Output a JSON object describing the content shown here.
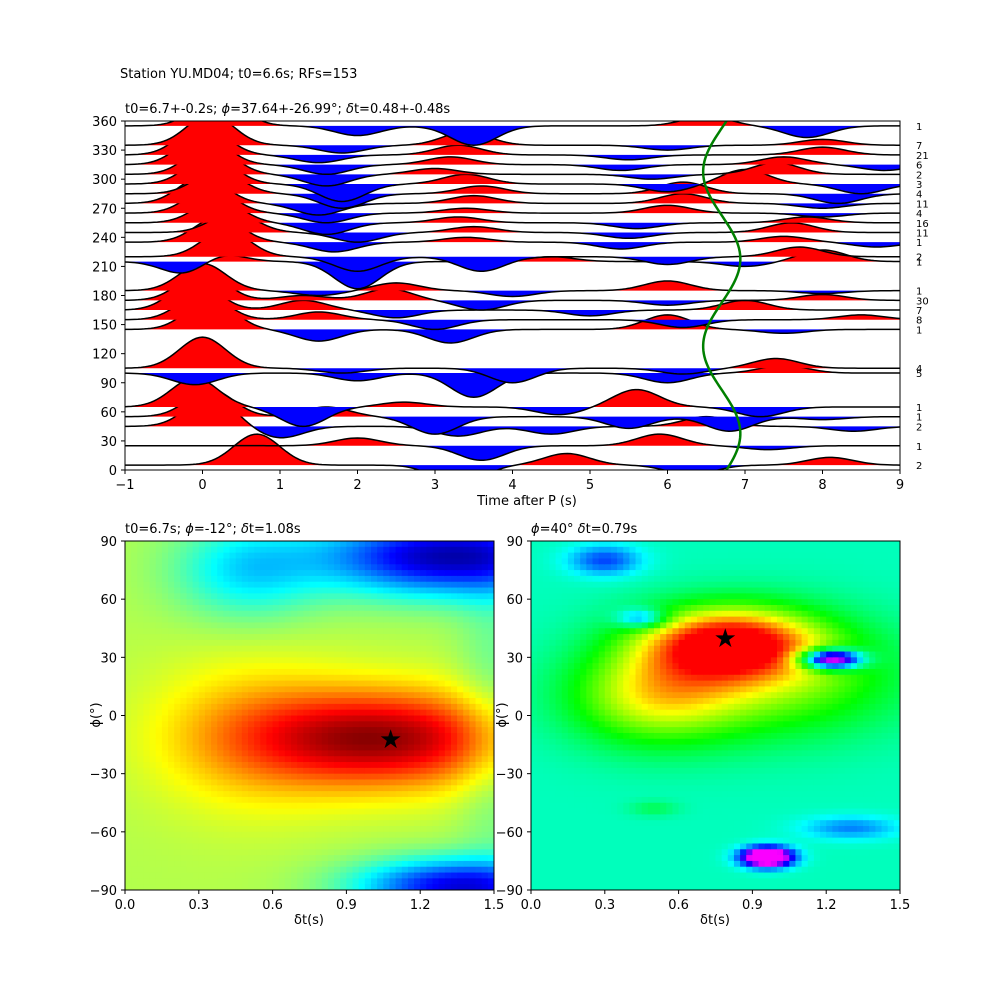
{
  "figure": {
    "suptitle": "Station YU.MD04; t0=6.6s; RFs=153"
  },
  "chart_data": [
    {
      "type": "line",
      "panel": "receiver-function-stack",
      "title_parts": [
        "t0=6.7+-0.2s; ",
        "ϕ",
        "=37.64+-26.99°; ",
        "δ",
        "t=0.48+-0.48s"
      ],
      "xlabel": "Time after P (s)",
      "xlim": [
        -1,
        9
      ],
      "ylim": [
        0,
        360
      ],
      "x_ticks": [
        -1,
        0,
        1,
        2,
        3,
        4,
        5,
        6,
        7,
        8,
        9
      ],
      "y_ticks": [
        0,
        30,
        60,
        90,
        120,
        150,
        180,
        210,
        240,
        270,
        300,
        330,
        360
      ],
      "fill_colors": {
        "positive": "#ff0000",
        "negative": "#0000ff"
      },
      "traces": [
        {
          "baz": 5,
          "count": "2",
          "peaks": [
            [
              -0.3,
              0.1
            ],
            [
              0.7,
              32
            ],
            [
              3.3,
              -22
            ],
            [
              4.7,
              12
            ],
            [
              6.3,
              -10
            ],
            [
              8.1,
              8
            ]
          ]
        },
        {
          "baz": 25,
          "count": "1",
          "peaks": [
            [
              0.6,
              0.1
            ],
            [
              2.0,
              8
            ],
            [
              3.6,
              -15
            ],
            [
              5.9,
              12
            ],
            [
              7.3,
              -4
            ]
          ]
        },
        {
          "baz": 45,
          "count": "2",
          "peaks": [
            [
              0.1,
              32
            ],
            [
              1.0,
              -12
            ],
            [
              3.3,
              -10
            ],
            [
              4.5,
              -8
            ],
            [
              6.5,
              10
            ],
            [
              8.4,
              -5
            ]
          ]
        },
        {
          "baz": 55,
          "count": "1",
          "peaks": [
            [
              0.1,
              28
            ],
            [
              1.6,
              10
            ],
            [
              3.0,
              -18
            ],
            [
              5.5,
              -12
            ],
            [
              6.8,
              -15
            ],
            [
              8.0,
              -3
            ]
          ]
        },
        {
          "baz": 65,
          "count": "1",
          "peaks": [
            [
              -0.1,
              30
            ],
            [
              1.3,
              -20
            ],
            [
              2.6,
              5
            ],
            [
              4.6,
              -8
            ],
            [
              5.6,
              18
            ],
            [
              7.2,
              -10
            ]
          ]
        },
        {
          "baz": 100,
          "count": "5",
          "peaks": [
            [
              -0.1,
              -12
            ],
            [
              2.0,
              -8
            ],
            [
              3.5,
              -25
            ],
            [
              6.0,
              -10
            ],
            [
              7.5,
              8
            ]
          ]
        },
        {
          "baz": 105,
          "count": "4",
          "peaks": [
            [
              0.0,
              32
            ],
            [
              1.8,
              -5
            ],
            [
              4.0,
              -15
            ],
            [
              6.2,
              -6
            ],
            [
              7.4,
              10
            ]
          ]
        },
        {
          "baz": 145,
          "count": "1",
          "peaks": [
            [
              0.1,
              32
            ],
            [
              1.5,
              -12
            ],
            [
              3.2,
              -14
            ],
            [
              6.0,
              15
            ],
            [
              7.5,
              -4
            ]
          ]
        },
        {
          "baz": 155,
          "count": "8",
          "peaks": [
            [
              0.0,
              28
            ],
            [
              1.5,
              8
            ],
            [
              3.0,
              -10
            ],
            [
              6.2,
              -8
            ],
            [
              8.5,
              5
            ]
          ]
        },
        {
          "baz": 165,
          "count": "7",
          "peaks": [
            [
              -0.1,
              30
            ],
            [
              1.3,
              10
            ],
            [
              2.5,
              -8
            ],
            [
              5.0,
              -6
            ],
            [
              7.0,
              10
            ]
          ]
        },
        {
          "baz": 175,
          "count": "30",
          "peaks": [
            [
              0.0,
              30
            ],
            [
              1.3,
              5
            ],
            [
              2.4,
              12
            ],
            [
              3.6,
              -10
            ],
            [
              6.0,
              -5
            ],
            [
              8.0,
              6
            ]
          ]
        },
        {
          "baz": 185,
          "count": "1",
          "peaks": [
            [
              0.0,
              28
            ],
            [
              1.5,
              -5
            ],
            [
              2.5,
              8
            ],
            [
              4.0,
              -6
            ],
            [
              6.0,
              10
            ],
            [
              8.0,
              -3
            ]
          ]
        },
        {
          "baz": 215,
          "count": "1",
          "peaks": [
            [
              -0.2,
              -15
            ],
            [
              0.2,
              10
            ],
            [
              2.0,
              -28
            ],
            [
              4.5,
              5
            ],
            [
              7.0,
              -5
            ],
            [
              8.0,
              12
            ]
          ]
        },
        {
          "baz": 220,
          "count": "2",
          "peaks": [
            [
              0.3,
              28
            ],
            [
              2.0,
              -15
            ],
            [
              3.6,
              -15
            ],
            [
              6.0,
              -8
            ],
            [
              7.7,
              10
            ]
          ]
        },
        {
          "baz": 235,
          "count": "1",
          "peaks": [
            [
              0.2,
              26
            ],
            [
              1.7,
              -10
            ],
            [
              3.4,
              5
            ],
            [
              5.4,
              -7
            ],
            [
              7.5,
              6
            ],
            [
              8.7,
              -5
            ]
          ]
        },
        {
          "baz": 245,
          "count": "11",
          "peaks": [
            [
              0.4,
              20
            ],
            [
              2.0,
              -10
            ],
            [
              3.5,
              6
            ],
            [
              5.5,
              -6
            ],
            [
              7.6,
              10
            ]
          ]
        },
        {
          "baz": 255,
          "count": "16",
          "peaks": [
            [
              0.2,
              24
            ],
            [
              1.6,
              -12
            ],
            [
              3.3,
              6
            ],
            [
              5.6,
              -6
            ],
            [
              7.8,
              6
            ]
          ]
        },
        {
          "baz": 265,
          "count": "4",
          "peaks": [
            [
              0.1,
              26
            ],
            [
              1.6,
              -10
            ],
            [
              3.4,
              5
            ],
            [
              6.0,
              8
            ],
            [
              8.0,
              -4
            ]
          ]
        },
        {
          "baz": 275,
          "count": "11",
          "peaks": [
            [
              0.0,
              28
            ],
            [
              1.5,
              -12
            ],
            [
              3.5,
              8
            ],
            [
              6.2,
              10
            ],
            [
              8.0,
              -5
            ]
          ]
        },
        {
          "baz": 285,
          "count": "4",
          "peaks": [
            [
              0.2,
              24
            ],
            [
              1.8,
              -15
            ],
            [
              3.6,
              8
            ],
            [
              6.2,
              12
            ],
            [
              8.2,
              -10
            ]
          ]
        },
        {
          "baz": 295,
          "count": "3",
          "peaks": [
            [
              0.1,
              30
            ],
            [
              1.8,
              -18
            ],
            [
              3.4,
              10
            ],
            [
              6.0,
              -8
            ],
            [
              7.0,
              15
            ],
            [
              8.5,
              -10
            ]
          ]
        },
        {
          "baz": 305,
          "count": "2",
          "peaks": [
            [
              0.1,
              30
            ],
            [
              1.6,
              -12
            ],
            [
              3.0,
              6
            ],
            [
              5.8,
              -5
            ],
            [
              7.4,
              12
            ]
          ]
        },
        {
          "baz": 315,
          "count": "6",
          "peaks": [
            [
              0.0,
              32
            ],
            [
              1.6,
              -10
            ],
            [
              3.2,
              8
            ],
            [
              5.4,
              -6
            ],
            [
              7.5,
              8
            ],
            [
              8.8,
              -6
            ]
          ]
        },
        {
          "baz": 325,
          "count": "21",
          "peaks": [
            [
              0.0,
              32
            ],
            [
              1.5,
              -8
            ],
            [
              3.3,
              10
            ],
            [
              5.5,
              -5
            ],
            [
              8.0,
              8
            ]
          ]
        },
        {
          "baz": 335,
          "count": "7",
          "peaks": [
            [
              0.1,
              32
            ],
            [
              1.8,
              -8
            ],
            [
              3.4,
              14
            ],
            [
              6.0,
              -5
            ],
            [
              8.0,
              6
            ]
          ]
        },
        {
          "baz": 355,
          "count": "1",
          "peaks": [
            [
              0.2,
              32
            ],
            [
              2.0,
              -10
            ],
            [
              3.5,
              -20
            ],
            [
              6.5,
              10
            ],
            [
              7.8,
              -12
            ]
          ]
        }
      ],
      "t0_curve": {
        "color": "#008000",
        "t0": 6.7,
        "amplitude": 0.48,
        "phi": 37.64
      }
    },
    {
      "type": "heatmap",
      "panel": "energy-grid-left",
      "title_parts": [
        "t0=6.7s; ",
        "ϕ",
        "=-12°; ",
        "δ",
        "t=1.08s"
      ],
      "xlabel": "δt(s)",
      "ylabel": "ϕ(°)",
      "xlim": [
        0,
        1.5
      ],
      "ylim": [
        -90,
        90
      ],
      "x_ticks": [
        0.0,
        0.3,
        0.6,
        0.9,
        1.2,
        1.5
      ],
      "y_ticks": [
        -90,
        -60,
        -30,
        0,
        30,
        60,
        90
      ],
      "colormap": "jet",
      "best": {
        "dt": 1.08,
        "phi": -12
      }
    },
    {
      "type": "heatmap",
      "panel": "energy-grid-right",
      "title_parts": [
        "ϕ",
        "=40° ",
        "δ",
        "t=0.79s"
      ],
      "xlabel": "δt(s)",
      "ylabel": "ϕ(°)",
      "xlim": [
        0,
        1.5
      ],
      "ylim": [
        -90,
        90
      ],
      "x_ticks": [
        0.0,
        0.3,
        0.6,
        0.9,
        1.2,
        1.5
      ],
      "y_ticks": [
        -90,
        -60,
        -30,
        0,
        30,
        60,
        90
      ],
      "colormap": "hsv",
      "best": {
        "dt": 0.79,
        "phi": 40
      }
    }
  ]
}
